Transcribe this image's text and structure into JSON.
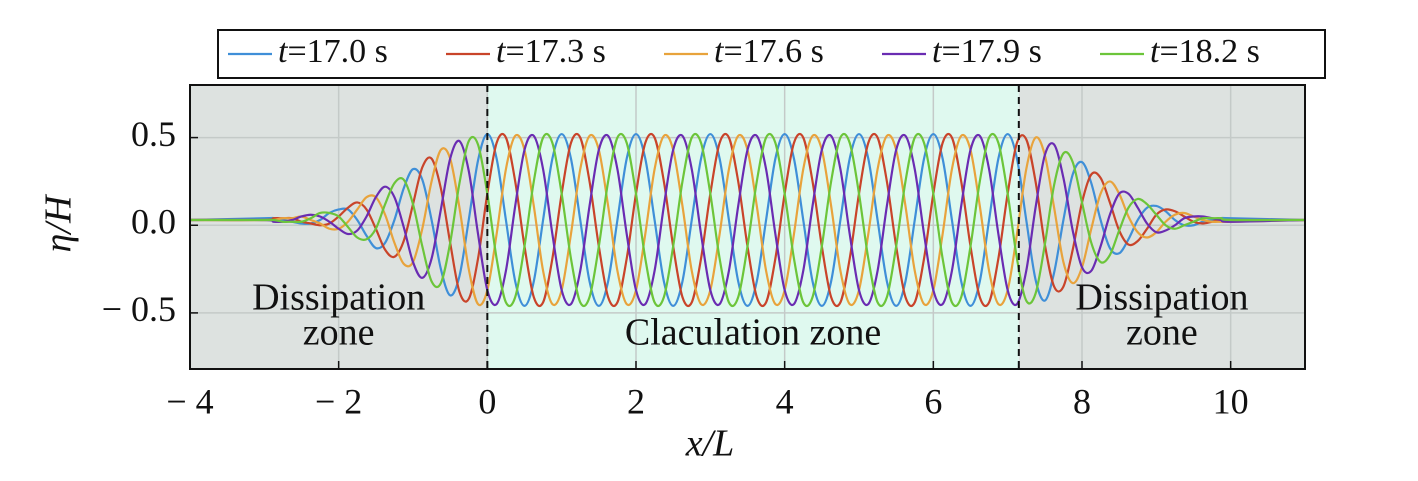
{
  "chart_data": {
    "type": "line",
    "x_label": "x/L",
    "y_label": "η/H",
    "xlim": [
      -4,
      11
    ],
    "ylim": [
      -0.82,
      0.8
    ],
    "xticks": [
      {
        "value": -4,
        "label": "− 4"
      },
      {
        "value": -2,
        "label": "− 2"
      },
      0,
      2,
      4,
      6,
      8,
      10
    ],
    "yticks": [
      {
        "value": -0.5,
        "label": "− 0.5"
      },
      {
        "value": 0,
        "label": "0.0"
      },
      0.5
    ],
    "grid": true,
    "legend": "top",
    "zones": [
      {
        "x0": -4,
        "x1": 0,
        "color": "#dde2e0",
        "label": [
          "Dissipation",
          "zone"
        ]
      },
      {
        "x0": 0,
        "x1": 7.15,
        "color": "#dff9ef",
        "label": [
          "Claculation zone"
        ]
      },
      {
        "x0": 7.15,
        "x1": 11,
        "color": "#dde2e0",
        "label": [
          "Dissipation",
          "zone"
        ]
      }
    ],
    "x": [
      -4,
      -3,
      -2.875,
      -2.75,
      -2.625,
      -2.5,
      -2.375,
      -2.25,
      -2.125,
      -2,
      -1.875,
      -1.75,
      -1.625,
      -1.5,
      -1.375,
      -1.25,
      -1.125,
      -1,
      -0.875,
      -0.75,
      -0.625,
      -0.5,
      -0.375,
      -0.25,
      -0.125,
      0,
      0.125,
      0.25,
      0.375,
      0.5,
      0.625,
      0.75,
      0.875,
      1,
      1.125,
      1.25,
      1.375,
      1.5,
      1.625,
      1.75,
      1.875,
      2,
      2.125,
      2.25,
      2.375,
      2.5,
      2.625,
      2.75,
      2.875,
      3,
      3.125,
      3.25,
      3.375,
      3.5,
      3.625,
      3.75,
      3.875,
      4,
      4.125,
      4.25,
      4.375,
      4.5,
      4.625,
      4.75,
      4.875,
      5,
      5.125,
      5.25,
      5.375,
      5.5,
      5.625,
      5.75,
      5.875,
      6,
      6.125,
      6.25,
      6.375,
      6.5,
      6.625,
      6.75,
      6.875,
      7,
      7.125,
      7.25,
      7.375,
      7.5,
      7.625,
      7.75,
      7.875,
      8,
      8.125,
      8.25,
      8.375,
      8.5,
      8.625,
      8.75,
      8.875,
      9,
      9.125,
      9.25,
      9.375,
      9.5,
      9.625,
      9.75,
      9.875,
      10,
      11
    ],
    "series": [
      {
        "name": "t=17.0 s",
        "color": "#3f8fd8",
        "values": [
          0.03,
          0.04,
          0.04,
          0.03,
          0.02,
          0.01,
          0.01,
          0.03,
          0.07,
          0.09,
          0.09,
          0.03,
          -0.06,
          -0.13,
          -0.1,
          0.03,
          0.21,
          0.32,
          0.26,
          0.03,
          -0.25,
          -0.4,
          -0.29,
          0.03,
          0.37,
          0.52,
          0.38,
          0.03,
          -0.32,
          -0.46,
          -0.32,
          0.03,
          0.38,
          0.52,
          0.38,
          0.03,
          -0.32,
          -0.46,
          -0.32,
          0.03,
          0.38,
          0.52,
          0.38,
          0.03,
          -0.32,
          -0.46,
          -0.32,
          0.03,
          0.38,
          0.52,
          0.38,
          0.03,
          -0.32,
          -0.46,
          -0.32,
          0.03,
          0.38,
          0.52,
          0.38,
          0.03,
          -0.32,
          -0.46,
          -0.32,
          0.03,
          0.38,
          0.52,
          0.38,
          0.03,
          -0.32,
          -0.46,
          -0.32,
          0.03,
          0.38,
          0.52,
          0.38,
          0.03,
          -0.32,
          -0.46,
          -0.32,
          0.03,
          0.38,
          0.52,
          0.38,
          0.03,
          -0.31,
          -0.43,
          -0.27,
          0.03,
          0.29,
          0.36,
          0.24,
          0.03,
          -0.13,
          -0.16,
          -0.08,
          0.03,
          0.1,
          0.11,
          0.08,
          0.03,
          0,
          0,
          0.02,
          0.03,
          0.04,
          0.04,
          0.03
        ]
      },
      {
        "name": "t=17.3 s",
        "color": "#c9442a",
        "values": [
          0.03,
          0.03,
          0.04,
          0.04,
          0.04,
          0.02,
          0.01,
          0,
          0.01,
          0.05,
          0.1,
          0.13,
          0.09,
          -0.02,
          -0.14,
          -0.18,
          -0.09,
          0.12,
          0.33,
          0.38,
          0.21,
          -0.1,
          -0.38,
          -0.42,
          -0.19,
          0.18,
          0.47,
          0.5,
          0.25,
          -0.12,
          -0.41,
          -0.44,
          -0.19,
          0.18,
          0.47,
          0.5,
          0.25,
          -0.12,
          -0.41,
          -0.44,
          -0.19,
          0.18,
          0.47,
          0.5,
          0.25,
          -0.12,
          -0.41,
          -0.44,
          -0.19,
          0.18,
          0.47,
          0.5,
          0.25,
          -0.12,
          -0.41,
          -0.44,
          -0.19,
          0.18,
          0.47,
          0.5,
          0.25,
          -0.12,
          -0.41,
          -0.44,
          -0.19,
          0.18,
          0.47,
          0.5,
          0.25,
          -0.12,
          -0.41,
          -0.44,
          -0.19,
          0.18,
          0.47,
          0.5,
          0.25,
          -0.12,
          -0.41,
          -0.44,
          -0.19,
          0.18,
          0.47,
          0.49,
          0.25,
          -0.11,
          -0.35,
          -0.35,
          -0.14,
          0.13,
          0.29,
          0.27,
          0.13,
          -0.03,
          -0.11,
          -0.09,
          -0.02,
          0.06,
          0.09,
          0.08,
          0.05,
          0.02,
          0.01,
          0.02,
          0.03,
          0.03,
          0.03
        ]
      },
      {
        "name": "t=17.6 s",
        "color": "#e8a33c",
        "values": [
          0.03,
          0.03,
          0.03,
          0.04,
          0.04,
          0.05,
          0.03,
          0.01,
          -0.02,
          -0.02,
          0.02,
          0.09,
          0.16,
          0.16,
          0.06,
          -0.1,
          -0.22,
          -0.21,
          -0.02,
          0.25,
          0.43,
          0.38,
          0.1,
          -0.25,
          -0.45,
          -0.37,
          -0.05,
          0.32,
          0.51,
          0.43,
          0.11,
          -0.26,
          -0.45,
          -0.37,
          -0.05,
          0.32,
          0.51,
          0.43,
          0.11,
          -0.26,
          -0.45,
          -0.37,
          -0.05,
          0.32,
          0.51,
          0.43,
          0.11,
          -0.26,
          -0.45,
          -0.37,
          -0.05,
          0.32,
          0.51,
          0.43,
          0.11,
          -0.26,
          -0.45,
          -0.37,
          -0.05,
          0.32,
          0.51,
          0.43,
          0.11,
          -0.26,
          -0.45,
          -0.37,
          -0.05,
          0.32,
          0.51,
          0.43,
          0.11,
          -0.26,
          -0.45,
          -0.37,
          -0.05,
          0.32,
          0.51,
          0.43,
          0.11,
          -0.26,
          -0.45,
          -0.37,
          -0.05,
          0.32,
          0.5,
          0.4,
          0.1,
          -0.21,
          -0.33,
          -0.24,
          -0.02,
          0.18,
          0.25,
          0.18,
          0.05,
          -0.04,
          -0.07,
          -0.04,
          0.02,
          0.06,
          0.07,
          0.05,
          0.03,
          0.02,
          0.02,
          0.02,
          0.03
        ]
      },
      {
        "name": "t=17.9 s",
        "color": "#6a2cb2",
        "values": [
          0.03,
          0.03,
          0.02,
          0.02,
          0.03,
          0.05,
          0.06,
          0.05,
          0.02,
          -0.02,
          -0.05,
          -0.03,
          0.05,
          0.16,
          0.22,
          0.16,
          -0.01,
          -0.21,
          -0.3,
          -0.19,
          0.09,
          0.38,
          0.48,
          0.31,
          -0.05,
          -0.37,
          -0.45,
          -0.26,
          0.11,
          0.43,
          0.51,
          0.32,
          -0.05,
          -0.37,
          -0.45,
          -0.26,
          0.11,
          0.43,
          0.51,
          0.32,
          -0.05,
          -0.37,
          -0.45,
          -0.26,
          0.11,
          0.43,
          0.51,
          0.32,
          -0.05,
          -0.37,
          -0.45,
          -0.26,
          0.11,
          0.43,
          0.51,
          0.32,
          -0.05,
          -0.37,
          -0.45,
          -0.26,
          0.11,
          0.43,
          0.51,
          0.32,
          -0.05,
          -0.37,
          -0.45,
          -0.26,
          0.11,
          0.43,
          0.51,
          0.32,
          -0.05,
          -0.37,
          -0.45,
          -0.26,
          0.11,
          0.43,
          0.51,
          0.32,
          -0.05,
          -0.37,
          -0.45,
          -0.26,
          0.1,
          0.4,
          0.46,
          0.27,
          -0.03,
          -0.24,
          -0.26,
          -0.12,
          0.06,
          0.18,
          0.18,
          0.1,
          0.01,
          -0.04,
          -0.03,
          0,
          0.04,
          0.05,
          0.05,
          0.04,
          0.03,
          0.02,
          0.03
        ]
      },
      {
        "name": "t=18.2 s",
        "color": "#6cc53a",
        "values": [
          0.03,
          0.03,
          0.03,
          0.02,
          0.02,
          0.02,
          0.04,
          0.07,
          0.07,
          0.05,
          -0.01,
          -0.07,
          -0.08,
          -0.02,
          0.12,
          0.24,
          0.26,
          0.12,
          -0.12,
          -0.32,
          -0.33,
          -0.1,
          0.24,
          0.48,
          0.46,
          0.18,
          -0.19,
          -0.44,
          -0.41,
          -0.12,
          0.25,
          0.5,
          0.47,
          0.18,
          -0.19,
          -0.44,
          -0.41,
          -0.12,
          0.25,
          0.5,
          0.47,
          0.18,
          -0.19,
          -0.44,
          -0.41,
          -0.12,
          0.25,
          0.5,
          0.47,
          0.18,
          -0.19,
          -0.44,
          -0.41,
          -0.12,
          0.25,
          0.5,
          0.47,
          0.18,
          -0.19,
          -0.44,
          -0.41,
          -0.12,
          0.25,
          0.5,
          0.47,
          0.18,
          -0.19,
          -0.44,
          -0.41,
          -0.12,
          0.25,
          0.5,
          0.47,
          0.18,
          -0.19,
          -0.44,
          -0.41,
          -0.12,
          0.25,
          0.5,
          0.47,
          0.18,
          -0.19,
          -0.43,
          -0.39,
          -0.11,
          0.23,
          0.41,
          0.36,
          0.13,
          -0.1,
          -0.21,
          -0.17,
          -0.03,
          0.1,
          0.15,
          0.12,
          0.06,
          0,
          -0.02,
          0,
          0.02,
          0.04,
          0.04,
          0.04,
          0.03,
          0.03
        ]
      }
    ]
  }
}
